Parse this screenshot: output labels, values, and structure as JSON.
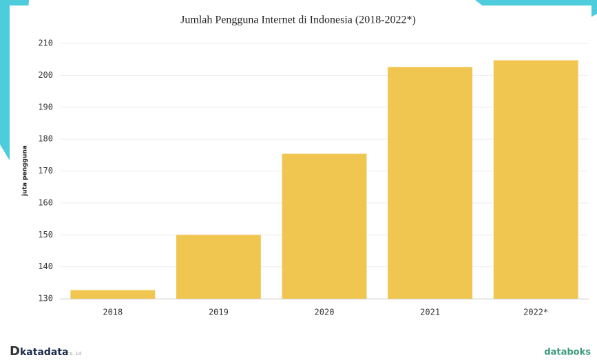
{
  "chart_data": {
    "type": "bar",
    "title": "Jumlah Pengguna Internet di Indonesia (2018-2022*)",
    "y_label": "juta pengguna",
    "categories": [
      "2018",
      "2019",
      "2020",
      "2021",
      "2022*"
    ],
    "values": [
      132.7,
      150,
      175.4,
      202.6,
      204.7
    ],
    "color": "#f1c650",
    "ylim": [
      130,
      210
    ],
    "yticks": [
      130,
      140,
      150,
      160,
      170,
      180,
      190,
      200,
      210
    ],
    "grid": true
  },
  "footer": {
    "left": "katadata",
    "left_suffix": "co.id",
    "right": "databoks"
  }
}
